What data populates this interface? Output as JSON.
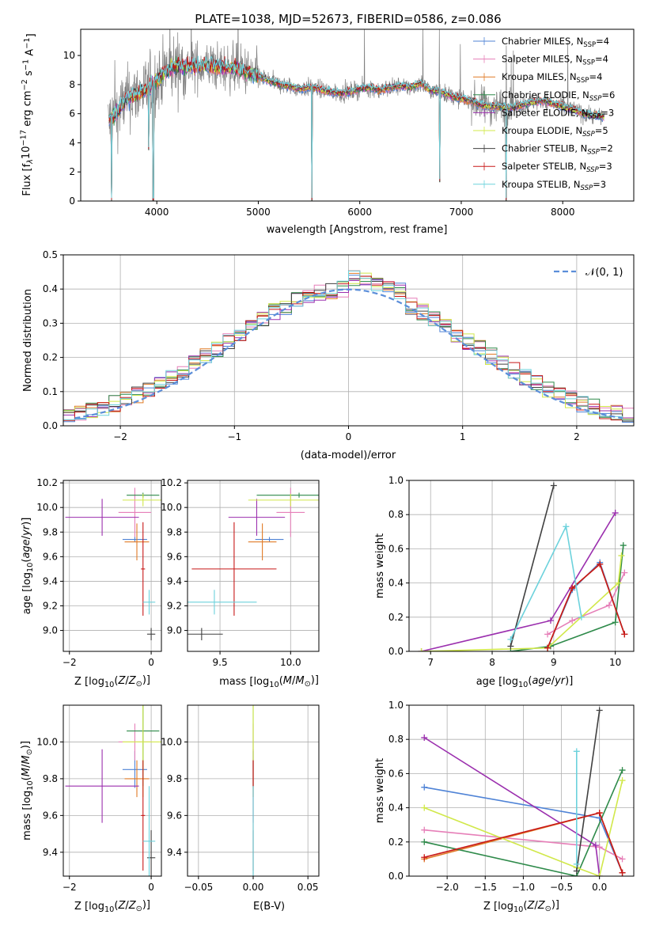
{
  "title": "PLATE=1038, MJD=52673, FIBERID=0586, z=0.086",
  "colors": {
    "Chabrier MILES": "#4f83d6",
    "Salpeter MILES": "#e67fb8",
    "Kroupa MILES": "#e07a26",
    "Chabrier ELODIE": "#2e8a4a",
    "Salpeter ELODIE": "#9b2fae",
    "Kroupa ELODIE": "#d1e84a",
    "Chabrier STELIB": "#404040",
    "Salpeter STELIB": "#c81818",
    "Kroupa STELIB": "#6cd2dc"
  },
  "chart_data": [
    {
      "type": "line",
      "id": "spectrum",
      "xlabel": "wavelength [Angstrom, rest frame]",
      "ylabel": "Flux [f_λ10^-17 erg cm^-2 s^-1 A^-1]",
      "xlim": [
        3250,
        8700
      ],
      "ylim": [
        0,
        11.8
      ],
      "xticks": [
        4000,
        5000,
        6000,
        7000,
        8000
      ],
      "yticks": [
        0,
        2,
        4,
        6,
        8,
        10
      ],
      "legend_position": "top-right",
      "legend": [
        {
          "imf": "Chabrier",
          "lib": "MILES",
          "n": "4"
        },
        {
          "imf": "Salpeter",
          "lib": "MILES",
          "n": "4"
        },
        {
          "imf": "Kroupa",
          "lib": "MILES",
          "n": "4"
        },
        {
          "imf": "Chabrier",
          "lib": "ELODIE",
          "n": "6"
        },
        {
          "imf": "Salpeter",
          "lib": "ELODIE",
          "n": "3"
        },
        {
          "imf": "Kroupa",
          "lib": "ELODIE",
          "n": "5"
        },
        {
          "imf": "Chabrier",
          "lib": "STELIB",
          "n": "2"
        },
        {
          "imf": "Salpeter",
          "lib": "STELIB",
          "n": "3"
        },
        {
          "imf": "Kroupa",
          "lib": "STELIB",
          "n": "3"
        }
      ],
      "continuum": [
        [
          3520,
          5.5
        ],
        [
          3600,
          6.0
        ],
        [
          3700,
          7.0
        ],
        [
          3800,
          7.4
        ],
        [
          3900,
          7.6
        ],
        [
          4000,
          8.3
        ],
        [
          4100,
          9.0
        ],
        [
          4200,
          9.3
        ],
        [
          4300,
          9.2
        ],
        [
          4400,
          9.3
        ],
        [
          4500,
          9.3
        ],
        [
          4600,
          9.2
        ],
        [
          4700,
          9.1
        ],
        [
          4800,
          9.1
        ],
        [
          4900,
          8.8
        ],
        [
          5000,
          8.6
        ],
        [
          5100,
          8.3
        ],
        [
          5200,
          8.0
        ],
        [
          5300,
          7.9
        ],
        [
          5400,
          7.7
        ],
        [
          5500,
          7.8
        ],
        [
          5600,
          7.7
        ],
        [
          5700,
          7.5
        ],
        [
          5800,
          7.4
        ],
        [
          5900,
          7.5
        ],
        [
          6000,
          7.7
        ],
        [
          6100,
          7.8
        ],
        [
          6200,
          7.6
        ],
        [
          6300,
          7.8
        ],
        [
          6400,
          7.9
        ],
        [
          6500,
          7.8
        ],
        [
          6600,
          8.1
        ],
        [
          6700,
          7.6
        ],
        [
          6800,
          7.5
        ],
        [
          6900,
          7.2
        ],
        [
          7000,
          7.0
        ],
        [
          7100,
          6.9
        ],
        [
          7200,
          6.6
        ],
        [
          7300,
          6.5
        ],
        [
          7400,
          6.5
        ],
        [
          7500,
          6.4
        ],
        [
          7600,
          6.6
        ],
        [
          7700,
          6.8
        ],
        [
          7800,
          6.9
        ],
        [
          7900,
          6.7
        ],
        [
          8000,
          6.5
        ],
        [
          8100,
          6.3
        ],
        [
          8200,
          6.0
        ],
        [
          8300,
          5.9
        ],
        [
          8400,
          5.8
        ]
      ],
      "dips": [
        [
          3525,
          0
        ],
        [
          3555,
          0
        ],
        [
          3920,
          3.5
        ],
        [
          3965,
          0
        ],
        [
          5530,
          0
        ],
        [
          6790,
          1.3
        ],
        [
          7440,
          0
        ]
      ]
    },
    {
      "type": "line",
      "id": "residuals",
      "xlabel": "(data-model)/error",
      "ylabel": "Normed distribution",
      "xlim": [
        -2.5,
        2.5
      ],
      "ylim": [
        0,
        0.5
      ],
      "xticks": [
        -2,
        -1,
        0,
        1,
        2
      ],
      "yticks": [
        0.0,
        0.1,
        0.2,
        0.3,
        0.4,
        0.5
      ],
      "legend_position": "top-right",
      "reference_curve": "N(0, 1)"
    },
    {
      "type": "scatter",
      "id": "age_vs_Z",
      "xlabel": "Z [log10(Z/Z⊙)]",
      "ylabel": "age [log10(age/yr)]",
      "xlim": [
        -2.15,
        0.25
      ],
      "ylim": [
        8.83,
        10.22
      ],
      "xticks": [
        -2,
        0
      ],
      "yticks": [
        9.0,
        9.2,
        9.4,
        9.6,
        9.8,
        10.0,
        10.2
      ],
      "points": [
        {
          "s": "Chabrier MILES",
          "x": -0.4,
          "xerr": 0.3,
          "y": 9.74,
          "yerr": 0.02
        },
        {
          "s": "Salpeter MILES",
          "x": -0.4,
          "xerr": 0.4,
          "y": 9.96,
          "yerr": 0.2
        },
        {
          "s": "Kroupa MILES",
          "x": -0.35,
          "xerr": 0.3,
          "y": 9.72,
          "yerr": 0.15
        },
        {
          "s": "Chabrier ELODIE",
          "x": -0.2,
          "xerr": 0.4,
          "y": 10.1,
          "yerr": 0.02
        },
        {
          "s": "Salpeter ELODIE",
          "x": -1.2,
          "xerr": 0.9,
          "y": 9.92,
          "yerr": 0.15
        },
        {
          "s": "Kroupa ELODIE",
          "x": -0.2,
          "xerr": 0.5,
          "y": 10.06,
          "yerr": 0.05
        },
        {
          "s": "Chabrier STELIB",
          "x": 0.0,
          "xerr": 0.1,
          "y": 8.97,
          "yerr": 0.05
        },
        {
          "s": "Salpeter STELIB",
          "x": -0.2,
          "xerr": 0.05,
          "y": 9.5,
          "yerr": 0.38
        },
        {
          "s": "Kroupa STELIB",
          "x": -0.05,
          "xerr": 0.15,
          "y": 9.23,
          "yerr": 0.1
        }
      ]
    },
    {
      "type": "scatter",
      "id": "age_vs_mass",
      "xlabel": "mass [log10(M/M⊙)]",
      "ylabel": "",
      "xlim": [
        9.27,
        10.2
      ],
      "ylim": [
        8.83,
        10.22
      ],
      "xticks": [
        9.5,
        10.0
      ],
      "yticks": [
        9.0,
        9.2,
        9.4,
        9.6,
        9.8,
        10.0,
        10.2
      ],
      "points": [
        {
          "s": "Chabrier MILES",
          "x": 9.85,
          "xerr": 0.1,
          "y": 9.74,
          "yerr": 0.02
        },
        {
          "s": "Salpeter MILES",
          "x": 10.0,
          "xerr": 0.1,
          "y": 9.96,
          "yerr": 0.2
        },
        {
          "s": "Kroupa MILES",
          "x": 9.8,
          "xerr": 0.1,
          "y": 9.72,
          "yerr": 0.15
        },
        {
          "s": "Chabrier ELODIE",
          "x": 10.06,
          "xerr": 0.3,
          "y": 10.1,
          "yerr": 0.02
        },
        {
          "s": "Salpeter ELODIE",
          "x": 9.76,
          "xerr": 0.2,
          "y": 9.92,
          "yerr": 0.15
        },
        {
          "s": "Kroupa ELODIE",
          "x": 10.0,
          "xerr": 0.3,
          "y": 10.06,
          "yerr": 0.05
        },
        {
          "s": "Chabrier STELIB",
          "x": 9.37,
          "xerr": 0.15,
          "y": 8.97,
          "yerr": 0.05
        },
        {
          "s": "Salpeter STELIB",
          "x": 9.6,
          "xerr": 0.3,
          "y": 9.5,
          "yerr": 0.38
        },
        {
          "s": "Kroupa STELIB",
          "x": 9.46,
          "xerr": 0.3,
          "y": 9.23,
          "yerr": 0.1
        }
      ]
    },
    {
      "type": "line",
      "id": "massweight_vs_age",
      "xlabel": "age [log10(age/yr)]",
      "ylabel": "mass weight",
      "xlim": [
        6.65,
        10.3
      ],
      "ylim": [
        0,
        1.0
      ],
      "xticks": [
        7,
        8,
        9,
        10
      ],
      "yticks": [
        0.0,
        0.2,
        0.4,
        0.6,
        0.8,
        1.0
      ],
      "series": [
        {
          "s": "Chabrier MILES",
          "x": [
            8.9,
            9.3,
            9.75,
            10.15
          ],
          "y": [
            0.02,
            0.36,
            0.52,
            0.1
          ]
        },
        {
          "s": "Salpeter MILES",
          "x": [
            8.9,
            9.3,
            9.9,
            10.15
          ],
          "y": [
            0.1,
            0.18,
            0.27,
            0.46
          ]
        },
        {
          "s": "Kroupa MILES",
          "x": [
            8.9,
            9.3,
            9.75,
            10.15
          ],
          "y": [
            0.02,
            0.37,
            0.51,
            0.1
          ]
        },
        {
          "s": "Chabrier ELODIE",
          "x": [
            8.3,
            8.95,
            10.0,
            10.13
          ],
          "y": [
            0.0,
            0.03,
            0.17,
            0.62
          ]
        },
        {
          "s": "Salpeter ELODIE",
          "x": [
            6.85,
            8.95,
            10.0
          ],
          "y": [
            0.0,
            0.18,
            0.81
          ]
        },
        {
          "s": "Kroupa ELODIE",
          "x": [
            6.85,
            8.9,
            10.05,
            10.1
          ],
          "y": [
            0.0,
            0.02,
            0.4,
            0.56
          ]
        },
        {
          "s": "Chabrier STELIB",
          "x": [
            8.3,
            9.0
          ],
          "y": [
            0.03,
            0.97
          ]
        },
        {
          "s": "Salpeter STELIB",
          "x": [
            8.9,
            9.3,
            9.75,
            10.15
          ],
          "y": [
            0.02,
            0.37,
            0.51,
            0.1
          ]
        },
        {
          "s": "Kroupa STELIB",
          "x": [
            8.3,
            9.2,
            9.45
          ],
          "y": [
            0.07,
            0.73,
            0.2
          ]
        }
      ]
    },
    {
      "type": "scatter",
      "id": "mass_vs_Z",
      "xlabel": "Z [log10(Z/Z⊙)]",
      "ylabel": "mass [log10(M/M⊙)]",
      "xlim": [
        -2.15,
        0.25
      ],
      "ylim": [
        9.27,
        10.2
      ],
      "xticks": [
        -2,
        0
      ],
      "yticks": [
        9.4,
        9.6,
        9.8,
        10.0
      ],
      "points": [
        {
          "s": "Chabrier MILES",
          "x": -0.4,
          "xerr": 0.3,
          "y": 9.85,
          "yerr": 0.1
        },
        {
          "s": "Salpeter MILES",
          "x": -0.4,
          "xerr": 0.4,
          "y": 10.0,
          "yerr": 0.1
        },
        {
          "s": "Kroupa MILES",
          "x": -0.35,
          "xerr": 0.3,
          "y": 9.8,
          "yerr": 0.1
        },
        {
          "s": "Chabrier ELODIE",
          "x": -0.2,
          "xerr": 0.4,
          "y": 10.06,
          "yerr": 0.3
        },
        {
          "s": "Salpeter ELODIE",
          "x": -1.2,
          "xerr": 0.9,
          "y": 9.76,
          "yerr": 0.2
        },
        {
          "s": "Kroupa ELODIE",
          "x": -0.2,
          "xerr": 0.5,
          "y": 10.0,
          "yerr": 0.3
        },
        {
          "s": "Chabrier STELIB",
          "x": 0.0,
          "xerr": 0.1,
          "y": 9.37,
          "yerr": 0.15
        },
        {
          "s": "Salpeter STELIB",
          "x": -0.2,
          "xerr": 0.05,
          "y": 9.6,
          "yerr": 0.3
        },
        {
          "s": "Kroupa STELIB",
          "x": -0.05,
          "xerr": 0.15,
          "y": 9.46,
          "yerr": 0.3
        }
      ]
    },
    {
      "type": "scatter",
      "id": "mass_vs_EBV",
      "xlabel": "E(B-V)",
      "ylabel": "",
      "xlim": [
        -0.06,
        0.06
      ],
      "ylim": [
        9.27,
        10.2
      ],
      "xticks": [
        -0.05,
        0.0,
        0.05
      ],
      "yticks": [
        9.4,
        9.6,
        9.8,
        10.0
      ],
      "points": [
        {
          "s": "Chabrier MILES",
          "x": 0,
          "xerr": 0,
          "y": 9.85,
          "yerr": 0.1
        },
        {
          "s": "Salpeter MILES",
          "x": 0,
          "xerr": 0,
          "y": 10.0,
          "yerr": 0.1
        },
        {
          "s": "Kroupa MILES",
          "x": 0,
          "xerr": 0,
          "y": 9.8,
          "yerr": 0.1
        },
        {
          "s": "Chabrier ELODIE",
          "x": 0,
          "xerr": 0,
          "y": 10.06,
          "yerr": 0.3
        },
        {
          "s": "Salpeter ELODIE",
          "x": 0,
          "xerr": 0,
          "y": 9.76,
          "yerr": 0.2
        },
        {
          "s": "Kroupa ELODIE",
          "x": 0,
          "xerr": 0,
          "y": 10.0,
          "yerr": 0.3
        },
        {
          "s": "Chabrier STELIB",
          "x": 0,
          "xerr": 0,
          "y": 9.37,
          "yerr": 0.15
        },
        {
          "s": "Salpeter STELIB",
          "x": 0,
          "xerr": 0,
          "y": 9.6,
          "yerr": 0.3
        },
        {
          "s": "Kroupa STELIB",
          "x": 0,
          "xerr": 0,
          "y": 9.46,
          "yerr": 0.3
        }
      ]
    },
    {
      "type": "line",
      "id": "massweight_vs_Z",
      "xlabel": "Z [log10(Z/Z⊙)]",
      "ylabel": "mass weight",
      "xlim": [
        -2.5,
        0.45
      ],
      "ylim": [
        0,
        1.0
      ],
      "xticks": [
        -2.0,
        -1.5,
        -1.0,
        -0.5,
        0.0
      ],
      "yticks": [
        0.0,
        0.2,
        0.4,
        0.6,
        0.8,
        1.0
      ],
      "series": [
        {
          "s": "Chabrier MILES",
          "x": [
            -2.3,
            0.0,
            0.3
          ],
          "y": [
            0.52,
            0.34,
            0.02
          ]
        },
        {
          "s": "Salpeter MILES",
          "x": [
            -2.3,
            0.0,
            0.3
          ],
          "y": [
            0.27,
            0.17,
            0.1
          ]
        },
        {
          "s": "Kroupa MILES",
          "x": [
            -2.3,
            0.0,
            0.3
          ],
          "y": [
            0.1,
            0.37,
            0.02
          ]
        },
        {
          "s": "Chabrier ELODIE",
          "x": [
            -2.3,
            -0.3,
            0.3
          ],
          "y": [
            0.2,
            0.0,
            0.62
          ]
        },
        {
          "s": "Salpeter ELODIE",
          "x": [
            -2.3,
            -0.05,
            0.0
          ],
          "y": [
            0.81,
            0.18,
            0.0
          ]
        },
        {
          "s": "Kroupa ELODIE",
          "x": [
            -2.3,
            -0.3,
            0.0,
            0.3
          ],
          "y": [
            0.4,
            0.05,
            0.0,
            0.56
          ]
        },
        {
          "s": "Chabrier STELIB",
          "x": [
            -0.3,
            0.0
          ],
          "y": [
            0.03,
            0.97
          ]
        },
        {
          "s": "Salpeter STELIB",
          "x": [
            -2.3,
            0.0,
            0.3
          ],
          "y": [
            0.11,
            0.37,
            0.02
          ]
        },
        {
          "s": "Kroupa STELIB",
          "x": [
            -0.3,
            -0.3
          ],
          "y": [
            0.73,
            0.07
          ]
        }
      ]
    }
  ]
}
